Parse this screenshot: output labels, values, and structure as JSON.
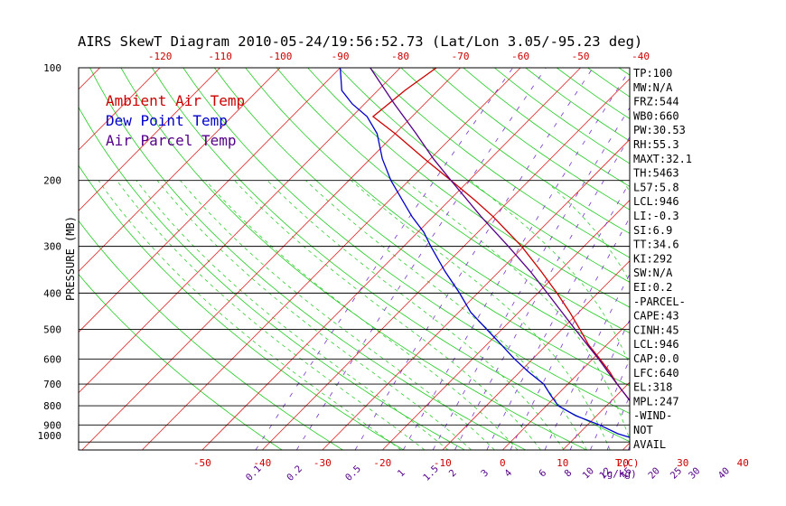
{
  "chart_data": {
    "type": "skew-t",
    "title": "AIRS SkewT Diagram 2010-05-24/19:56:52.73 (Lat/Lon 3.05/-95.23 deg)",
    "ylabel": "PRESSURE (MB)",
    "xlabel": "T(C)",
    "mixing_ratio_unit": "(g/kg)",
    "pressure_ticks": [
      "100",
      "200",
      "300",
      "400",
      "500",
      "600",
      "700",
      "800",
      "900",
      "1000"
    ],
    "pressure_levels": [
      100,
      200,
      300,
      400,
      500,
      600,
      700,
      800,
      900,
      1000
    ],
    "temp_ticks_top": [
      "-120",
      "-110",
      "-100",
      "-90",
      "-80",
      "-70",
      "-60",
      "-50",
      "-40"
    ],
    "temp_ticks_top_values": [
      -120,
      -110,
      -100,
      -90,
      -80,
      -70,
      -60,
      -50,
      -40
    ],
    "temp_ticks_bottom": [
      "-50",
      "-40",
      "-30",
      "-20",
      "-10",
      "0",
      "10",
      "20",
      "30",
      "40"
    ],
    "temp_ticks_bottom_values": [
      -50,
      -40,
      -30,
      -20,
      -10,
      0,
      10,
      20,
      30,
      40
    ],
    "mixing_ratio_labels": [
      "0.1",
      "0.2",
      "0.5",
      "1",
      "1.5",
      "2",
      "3",
      "4",
      "6",
      "8",
      "10",
      "12",
      "15",
      "20",
      "25",
      "30",
      "40"
    ],
    "mixing_ratio_values": [
      0.1,
      0.2,
      0.5,
      1,
      1.5,
      2,
      3,
      4,
      6,
      8,
      10,
      12,
      15,
      20,
      25,
      30,
      40
    ],
    "legend": [
      {
        "name": "Ambient Air Temp",
        "color": "#cc0000"
      },
      {
        "name": "Dew Point Temp",
        "color": "#0000cc"
      },
      {
        "name": "Air Parcel Temp",
        "color": "#550088"
      }
    ],
    "series": [
      {
        "name": "Ambient Air Temp",
        "color": "#cc0000",
        "points": [
          [
            1000,
            27.5
          ],
          [
            975,
            24.5
          ],
          [
            950,
            22.5
          ],
          [
            900,
            20.6
          ],
          [
            850,
            17.8
          ],
          [
            800,
            14.6
          ],
          [
            750,
            11.5
          ],
          [
            700,
            8.2
          ],
          [
            650,
            5.0
          ],
          [
            600,
            1.2
          ],
          [
            550,
            -3.0
          ],
          [
            500,
            -7.0
          ],
          [
            450,
            -11.5
          ],
          [
            400,
            -16.8
          ],
          [
            350,
            -23.0
          ],
          [
            300,
            -30.4
          ],
          [
            250,
            -40.0
          ],
          [
            225,
            -46.0
          ],
          [
            200,
            -53.0
          ],
          [
            175,
            -61.0
          ],
          [
            150,
            -70.0
          ],
          [
            135,
            -76.5
          ],
          [
            125,
            -76.0
          ],
          [
            115,
            -75.5
          ],
          [
            100,
            -74.0
          ]
        ]
      },
      {
        "name": "Dew Point Temp",
        "color": "#0000cc",
        "points": [
          [
            1000,
            22.5
          ],
          [
            975,
            19.5
          ],
          [
            950,
            16.5
          ],
          [
            900,
            12.0
          ],
          [
            850,
            6.5
          ],
          [
            800,
            2.0
          ],
          [
            750,
            -1.0
          ],
          [
            700,
            -4.0
          ],
          [
            650,
            -8.5
          ],
          [
            600,
            -13.0
          ],
          [
            550,
            -17.5
          ],
          [
            500,
            -22.5
          ],
          [
            450,
            -28.0
          ],
          [
            400,
            -33.0
          ],
          [
            350,
            -39.0
          ],
          [
            300,
            -45.5
          ],
          [
            275,
            -49.0
          ],
          [
            250,
            -53.5
          ],
          [
            225,
            -58.0
          ],
          [
            200,
            -63.0
          ],
          [
            175,
            -68.0
          ],
          [
            150,
            -73.0
          ],
          [
            135,
            -77.5
          ],
          [
            125,
            -82.0
          ],
          [
            115,
            -86.0
          ],
          [
            100,
            -90.0
          ]
        ]
      },
      {
        "name": "Air Parcel Temp",
        "color": "#550088",
        "points": [
          [
            1000,
            27.5
          ],
          [
            975,
            25.3
          ],
          [
            946,
            22.5
          ],
          [
            900,
            20.2
          ],
          [
            850,
            17.4
          ],
          [
            800,
            14.5
          ],
          [
            750,
            11.5
          ],
          [
            700,
            8.2
          ],
          [
            650,
            4.7
          ],
          [
            600,
            1.0
          ],
          [
            550,
            -3.2
          ],
          [
            500,
            -7.8
          ],
          [
            450,
            -12.8
          ],
          [
            400,
            -18.4
          ],
          [
            350,
            -24.8
          ],
          [
            300,
            -32.6
          ],
          [
            250,
            -42.0
          ],
          [
            200,
            -53.0
          ],
          [
            175,
            -59.5
          ],
          [
            150,
            -66.5
          ],
          [
            125,
            -75.0
          ],
          [
            100,
            -85.0
          ]
        ]
      }
    ],
    "grid": true
  },
  "indices": [
    "TP:100",
    "MW:N/A",
    "FRZ:544",
    "WB0:660",
    "PW:30.53",
    "RH:55.3",
    "MAXT:32.1",
    "TH:5463",
    "L57:5.8",
    "LCL:946",
    "LI:-0.3",
    "SI:6.9",
    "TT:34.6",
    "KI:292",
    "SW:N/A",
    "EI:0.2",
    "-PARCEL-",
    "CAPE:43",
    "CINH:45",
    "LCL:946",
    "CAP:0.0",
    "LFC:640",
    "EL:318",
    "MPL:247",
    "-WIND-",
    "NOT",
    "AVAIL"
  ]
}
